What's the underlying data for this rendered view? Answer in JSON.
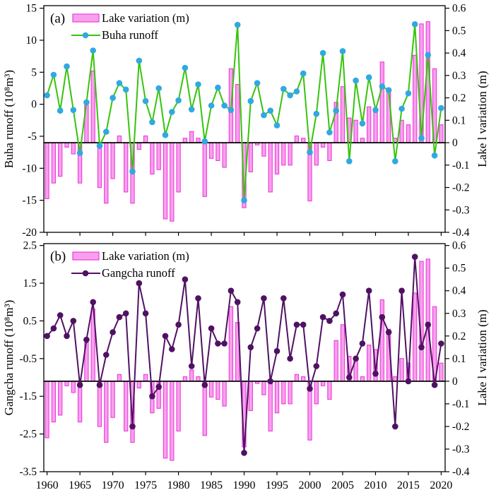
{
  "figure_title": "",
  "x_tick_labels": [
    "1960",
    "1965",
    "1970",
    "1975",
    "1980",
    "1985",
    "1990",
    "1995",
    "2000",
    "2005",
    "2010",
    "2015",
    "2020"
  ],
  "colors": {
    "bar_fill": "#f9a0ec",
    "bar_stroke": "#e93ddc",
    "buha_line": "#35c40d",
    "buha_marker": "#31a9e0",
    "gangcha_line": "#4f1263",
    "gangcha_marker": "#4f1263",
    "zero_line": "#000000",
    "frame": "#000000"
  },
  "chart_data": [
    {
      "panel": "a",
      "panel_label": "(a)",
      "type": "bar+line",
      "legend": {
        "bar_label": "Lake variation (m)",
        "line_label": "Buha runoff"
      },
      "ylabel_left": "Buha runoff (10⁸m³)",
      "ylabel_right": "Lake l variation (m)",
      "ylim_left": [
        -20,
        15
      ],
      "ylim_right": [
        -0.4,
        0.6
      ],
      "yticks_left_labels": [
        "15",
        "10",
        "5",
        "0",
        "-5",
        "-10",
        "-15",
        "-20"
      ],
      "yticks_left": [
        15,
        10,
        5,
        0,
        -5,
        -10,
        -15,
        -20
      ],
      "yticks_right_labels": [
        "0.6",
        "0.5",
        "0.4",
        "0.3",
        "0.2",
        "0.1",
        "0",
        "-0.1",
        "-0.2",
        "-0.3",
        "-0.4"
      ],
      "yticks_right": [
        0.6,
        0.5,
        0.4,
        0.3,
        0.2,
        0.1,
        0,
        -0.1,
        -0.2,
        -0.3,
        -0.4
      ],
      "x": [
        1960,
        1961,
        1962,
        1963,
        1964,
        1965,
        1966,
        1967,
        1968,
        1969,
        1970,
        1971,
        1972,
        1973,
        1974,
        1975,
        1976,
        1977,
        1978,
        1979,
        1980,
        1981,
        1982,
        1983,
        1984,
        1985,
        1986,
        1987,
        1988,
        1989,
        1990,
        1991,
        1992,
        1993,
        1994,
        1995,
        1996,
        1997,
        1998,
        1999,
        2000,
        2001,
        2002,
        2003,
        2004,
        2005,
        2006,
        2007,
        2008,
        2009,
        2010,
        2011,
        2012,
        2013,
        2014,
        2015,
        2016,
        2017,
        2018,
        2019,
        2020
      ],
      "series": [
        {
          "name": "Lake variation (m)",
          "type": "bar",
          "axis": "right",
          "values": [
            -0.25,
            -0.18,
            -0.15,
            -0.02,
            -0.05,
            -0.18,
            0.17,
            0.32,
            -0.2,
            -0.27,
            -0.16,
            0.03,
            -0.22,
            -0.27,
            -0.03,
            0.03,
            -0.14,
            -0.12,
            -0.34,
            -0.35,
            -0.22,
            0.02,
            0.05,
            0.02,
            -0.24,
            -0.07,
            -0.08,
            -0.11,
            0.33,
            0.26,
            -0.29,
            -0.13,
            -0.01,
            -0.06,
            -0.22,
            -0.14,
            -0.1,
            -0.1,
            0.03,
            0.02,
            -0.26,
            -0.1,
            -0.02,
            -0.08,
            0.18,
            0.25,
            0.11,
            0.1,
            0.02,
            0.16,
            0.14,
            0.36,
            0.23,
            0.02,
            0.1,
            0.08,
            0.39,
            0.53,
            0.54,
            0.33,
            0.08
          ]
        },
        {
          "name": "Buha runoff",
          "type": "line",
          "axis": "left",
          "values": [
            1.4,
            4.6,
            -1.0,
            5.9,
            -0.9,
            -7.6,
            0.3,
            8.4,
            -6.5,
            -4.3,
            1.0,
            3.3,
            2.3,
            -10.5,
            6.8,
            0.5,
            -2.8,
            2.5,
            -4.8,
            -1.2,
            0.6,
            5.7,
            -0.8,
            3.1,
            -5.8,
            -0.2,
            2.6,
            -0.2,
            -0.9,
            12.4,
            -15.0,
            0.5,
            3.3,
            -1.7,
            -1.0,
            -3.3,
            2.4,
            1.4,
            2.0,
            4.8,
            -7.5,
            -1.5,
            8.0,
            -4.4,
            -1.0,
            8.3,
            -8.9,
            3.7,
            -3.0,
            4.2,
            -0.9,
            2.8,
            2.2,
            -8.9,
            -0.7,
            1.7,
            12.5,
            -5.3,
            7.7,
            -8.0,
            -0.6
          ]
        }
      ]
    },
    {
      "panel": "b",
      "panel_label": "(b)",
      "type": "bar+line",
      "legend": {
        "bar_label": "Lake variation (m)",
        "line_label": "Gangcha runoff"
      },
      "ylabel_left": "Gangcha runoff (10⁸m³)",
      "ylabel_right": "Lake l variation (m)",
      "ylim_left": [
        -3.5,
        2.5
      ],
      "ylim_right": [
        -0.4,
        0.6
      ],
      "yticks_left_labels": [
        "2.5",
        "1.5",
        "0.5",
        "-0.5",
        "-1.5",
        "-2.5",
        "-3.5"
      ],
      "yticks_left": [
        2.5,
        1.5,
        0.5,
        -0.5,
        -1.5,
        -2.5,
        -3.5
      ],
      "yticks_right_labels": [
        "0.6",
        "0.5",
        "0.4",
        "0.3",
        "0.2",
        "0.1",
        "0",
        "-0.1",
        "-0.2",
        "-0.3",
        "-0.4"
      ],
      "yticks_right": [
        0.6,
        0.5,
        0.4,
        0.3,
        0.2,
        0.1,
        0,
        -0.1,
        -0.2,
        -0.3,
        -0.4
      ],
      "x": [
        1960,
        1961,
        1962,
        1963,
        1964,
        1965,
        1966,
        1967,
        1968,
        1969,
        1970,
        1971,
        1972,
        1973,
        1974,
        1975,
        1976,
        1977,
        1978,
        1979,
        1980,
        1981,
        1982,
        1983,
        1984,
        1985,
        1986,
        1987,
        1988,
        1989,
        1990,
        1991,
        1992,
        1993,
        1994,
        1995,
        1996,
        1997,
        1998,
        1999,
        2000,
        2001,
        2002,
        2003,
        2004,
        2005,
        2006,
        2007,
        2008,
        2009,
        2010,
        2011,
        2012,
        2013,
        2014,
        2015,
        2016,
        2017,
        2018,
        2019,
        2020
      ],
      "series": [
        {
          "name": "Lake variation (m)",
          "type": "bar",
          "axis": "right",
          "values": [
            -0.25,
            -0.18,
            -0.15,
            -0.02,
            -0.05,
            -0.18,
            0.17,
            0.32,
            -0.2,
            -0.27,
            -0.16,
            0.03,
            -0.22,
            -0.27,
            -0.03,
            0.03,
            -0.14,
            -0.12,
            -0.34,
            -0.35,
            -0.22,
            0.02,
            0.05,
            0.02,
            -0.24,
            -0.07,
            -0.08,
            -0.11,
            0.33,
            0.26,
            -0.29,
            -0.13,
            -0.01,
            -0.06,
            -0.22,
            -0.14,
            -0.1,
            -0.1,
            0.03,
            0.02,
            -0.26,
            -0.1,
            -0.02,
            -0.08,
            0.18,
            0.25,
            0.11,
            0.1,
            0.02,
            0.16,
            0.14,
            0.36,
            0.23,
            0.02,
            0.1,
            0.08,
            0.39,
            0.53,
            0.54,
            0.33,
            0.08
          ]
        },
        {
          "name": "Gangcha runoff",
          "type": "line",
          "axis": "left",
          "values": [
            0.1,
            0.3,
            0.65,
            0.1,
            0.5,
            -1.2,
            0.0,
            1.0,
            -1.2,
            -0.4,
            0.2,
            0.6,
            0.7,
            -2.3,
            1.5,
            0.7,
            -1.5,
            -1.25,
            0.1,
            -0.25,
            0.4,
            1.6,
            -0.7,
            1.1,
            -1.2,
            0.3,
            -0.1,
            -0.1,
            1.3,
            1.0,
            -3.0,
            -0.2,
            0.3,
            1.1,
            -1.1,
            -0.3,
            1.1,
            -0.5,
            0.4,
            0.4,
            -1.3,
            -0.7,
            0.6,
            0.5,
            0.7,
            1.2,
            -1.0,
            -0.5,
            -0.1,
            1.3,
            -0.9,
            0.6,
            0.2,
            -2.3,
            1.3,
            -1.1,
            2.2,
            -0.2,
            0.4,
            -1.2,
            -0.1
          ]
        }
      ]
    }
  ]
}
